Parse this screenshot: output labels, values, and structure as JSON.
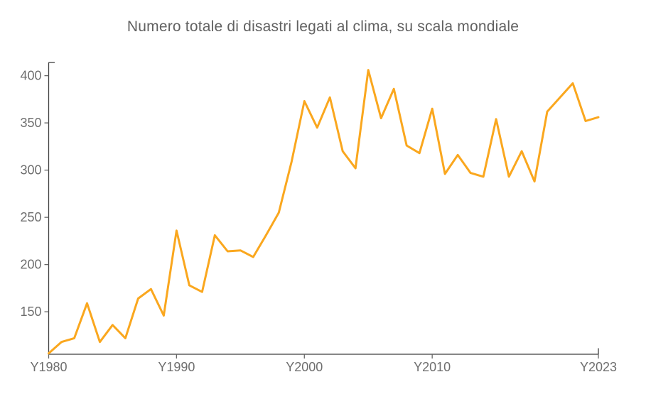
{
  "chart_data": {
    "type": "line",
    "title": "Numero totale di disastri legati al clima, su scala mondiale",
    "xlabel": "",
    "ylabel": "",
    "legend": "none",
    "grid": false,
    "x": [
      1980,
      1981,
      1982,
      1983,
      1984,
      1985,
      1986,
      1987,
      1988,
      1989,
      1990,
      1991,
      1992,
      1993,
      1994,
      1995,
      1996,
      1997,
      1998,
      1999,
      2000,
      2001,
      2002,
      2003,
      2004,
      2005,
      2006,
      2007,
      2008,
      2009,
      2010,
      2011,
      2012,
      2013,
      2014,
      2015,
      2016,
      2017,
      2018,
      2019,
      2020,
      2021,
      2022,
      2023
    ],
    "values": [
      106,
      118,
      122,
      159,
      118,
      136,
      122,
      164,
      174,
      146,
      236,
      178,
      171,
      231,
      214,
      215,
      208,
      231,
      255,
      309,
      373,
      345,
      377,
      320,
      302,
      406,
      355,
      386,
      326,
      318,
      365,
      296,
      316,
      297,
      293,
      354,
      293,
      320,
      288,
      362,
      377,
      392,
      352,
      356
    ],
    "xlim": [
      1980,
      2023
    ],
    "ylim": [
      105,
      414
    ],
    "yticks": [
      150,
      200,
      250,
      300,
      350,
      400
    ],
    "xticks": [
      {
        "v": 1980,
        "label": "Y1980"
      },
      {
        "v": 1990,
        "label": "Y1990"
      },
      {
        "v": 2000,
        "label": "Y2000"
      },
      {
        "v": 2010,
        "label": "Y2010"
      },
      {
        "v": 2023,
        "label": "Y2023"
      }
    ],
    "line_color": "#FAA71E",
    "title_color": "#616161",
    "axis_label_color": "#6E6E6E",
    "axis_line_color": "#3F3F3F",
    "tick_color": "#666666",
    "background_color": "#FFFFFF"
  }
}
